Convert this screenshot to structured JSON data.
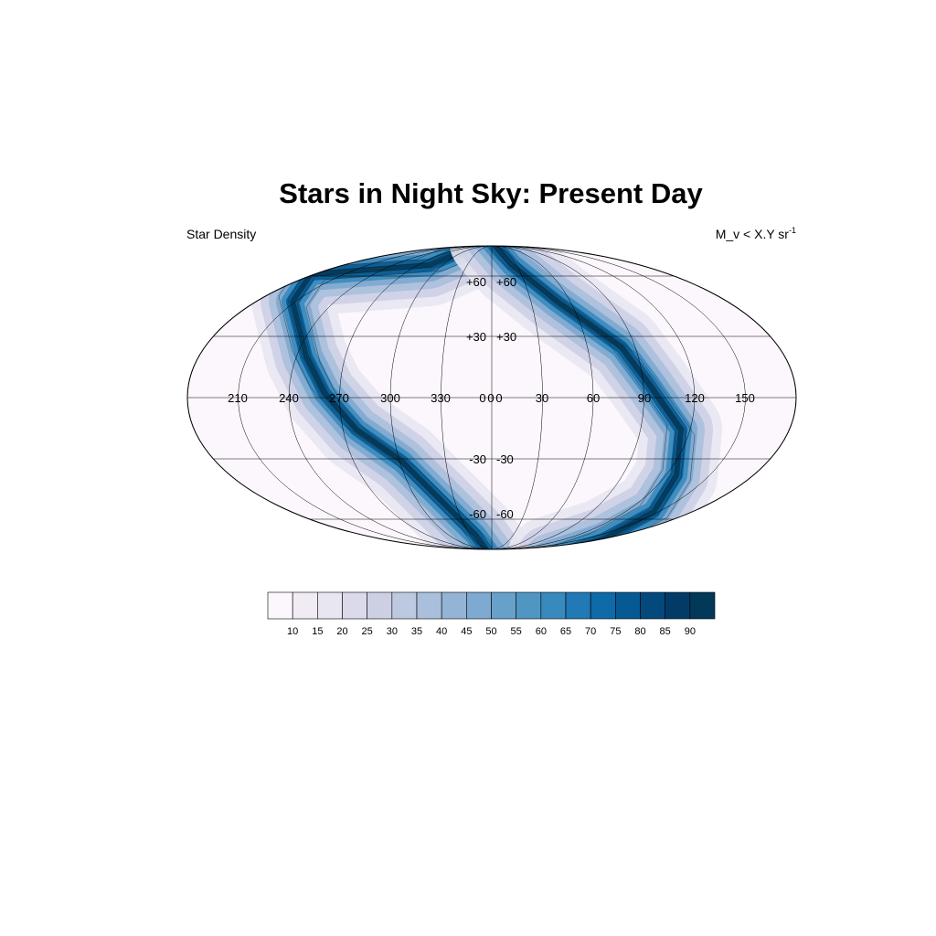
{
  "title": "Stars in Night Sky: Present Day",
  "left_string": "Star Density",
  "right_string": {
    "text": "M_v < X.Y sr",
    "superscript": "-1"
  },
  "map": {
    "projection": "Mollweide",
    "longitude_labels": [
      "210",
      "240",
      "270",
      "300",
      "330",
      "0",
      "0",
      "0",
      "30",
      "60",
      "90",
      "120",
      "150"
    ],
    "latitude_labels_left": [
      "+60",
      "+30",
      "-30",
      "-60"
    ],
    "latitude_labels_right": [
      "+60",
      "+30",
      "-30",
      "-60"
    ],
    "grid": true,
    "feature": "two S-shaped dense bands of stars (the Milky Way) across the sky",
    "color_scheme": [
      "#fcf7fc",
      "#f1ecf4",
      "#e8e6f1",
      "#dadaeb",
      "#cdd0e5",
      "#bdc9e1",
      "#aabfdc",
      "#94b4d6",
      "#7ea9d0",
      "#67a1ca",
      "#4f96c3",
      "#3889bd",
      "#2179b5",
      "#0f6aa8",
      "#065a94",
      "#04497c",
      "#033b67",
      "#023858"
    ]
  },
  "colorbar": {
    "labels": [
      "10",
      "15",
      "20",
      "25",
      "30",
      "35",
      "40",
      "45",
      "50",
      "55",
      "60",
      "65",
      "70",
      "75",
      "80",
      "85",
      "90"
    ],
    "colors": [
      "#fcf7fc",
      "#f1ecf4",
      "#e8e6f1",
      "#dadaeb",
      "#cdd0e5",
      "#bdc9e1",
      "#aabfdc",
      "#94b4d6",
      "#7ea9d0",
      "#67a1ca",
      "#4f96c3",
      "#3889bd",
      "#2179b5",
      "#0f6aa8",
      "#065a94",
      "#04497c",
      "#033b67",
      "#023858"
    ]
  }
}
